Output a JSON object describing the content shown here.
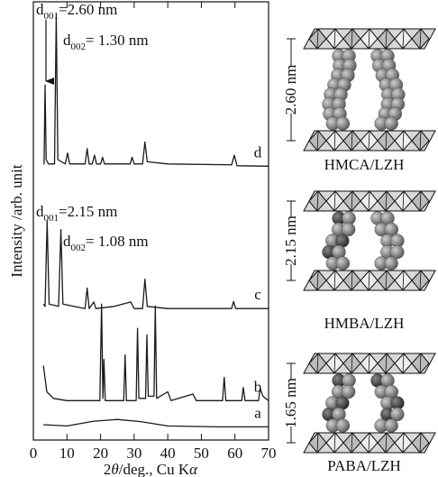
{
  "chart_data": {
    "type": "line",
    "xlabel_parts": [
      "2",
      "θ",
      "/deg., Cu K",
      "α"
    ],
    "ylabel": "Intensity /arb. unit",
    "xlim": [
      0,
      70
    ],
    "xticks": [
      0,
      10,
      20,
      30,
      40,
      50,
      60,
      70
    ],
    "ylim": [
      0,
      100
    ],
    "color": "#1a1a1a",
    "annotations": [
      {
        "parts": [
          "d",
          "001",
          "=2.60 nm"
        ]
      },
      {
        "parts": [
          "d",
          "002",
          "= 1.30 nm"
        ]
      },
      {
        "parts": [
          "d",
          "001",
          "=2.15 nm"
        ]
      },
      {
        "parts": [
          "d",
          "002",
          "= 1.08 nm"
        ]
      }
    ],
    "series": [
      {
        "name": "d",
        "x": [
          3,
          3.2,
          3.5,
          3.8,
          4.5,
          6.3,
          6.8,
          7.3,
          9.5,
          10.2,
          10.8,
          15.4,
          16,
          16.6,
          17.5,
          18.2,
          18.8,
          20,
          20.6,
          21.2,
          25,
          28.8,
          29.4,
          30,
          32.5,
          33.2,
          33.9,
          40,
          59,
          59.8,
          60.6,
          70
        ],
        "values": [
          63,
          63,
          81,
          64,
          63,
          63,
          97,
          64,
          63,
          65.5,
          63,
          63,
          66.5,
          63,
          63,
          65,
          63,
          63,
          64.5,
          63,
          63,
          63,
          64.5,
          63,
          63,
          68,
          63.5,
          63,
          62.8,
          65,
          62.6,
          62.5
        ]
      },
      {
        "name": "c",
        "x": [
          3,
          3.5,
          4.1,
          4.7,
          7.5,
          8.2,
          8.8,
          15.4,
          16,
          16.6,
          18,
          18.6,
          24,
          29,
          30,
          32.5,
          33.2,
          33.9,
          40,
          59,
          59.6,
          60.2,
          70
        ],
        "values": [
          31,
          30.5,
          50,
          31,
          30.5,
          48,
          31,
          30,
          34.7,
          30,
          31.5,
          30,
          30.5,
          31.5,
          30,
          30,
          36.7,
          30.5,
          30,
          30,
          31.6,
          30,
          30
        ]
      },
      {
        "name": "b",
        "x": [
          3,
          4,
          6,
          10,
          19.8,
          20.3,
          20.7,
          21,
          21.4,
          26.9,
          27.3,
          27.7,
          30.6,
          31,
          31.4,
          33.4,
          33.8,
          34.2,
          35.9,
          36.3,
          36.7,
          40,
          41,
          47.5,
          48.5,
          56.3,
          56.8,
          57.3,
          62,
          62.5,
          63,
          67,
          67.5,
          68.3,
          70
        ],
        "values": [
          17,
          11,
          9.5,
          9,
          9,
          31,
          9.5,
          18.4,
          9,
          9,
          19.4,
          9,
          9,
          25.5,
          9.5,
          9.5,
          24,
          10,
          10,
          30.6,
          9.5,
          11,
          9,
          10.5,
          9,
          9,
          14.3,
          9,
          9,
          12,
          9,
          9,
          11.8,
          10,
          9
        ]
      },
      {
        "name": "a",
        "x": [
          3,
          10,
          18,
          25,
          32,
          40,
          55,
          70
        ],
        "values": [
          3.5,
          3.2,
          4.3,
          4.7,
          4.2,
          3.2,
          3,
          3
        ]
      }
    ]
  },
  "diagram": {
    "panels": [
      {
        "label": "HMCA/LZH",
        "spacing": "2.60 nm"
      },
      {
        "label": "HMBA/LZH",
        "spacing": "2.15 nm"
      },
      {
        "label": "PABA/LZH",
        "spacing": "1.65 nm"
      }
    ]
  }
}
